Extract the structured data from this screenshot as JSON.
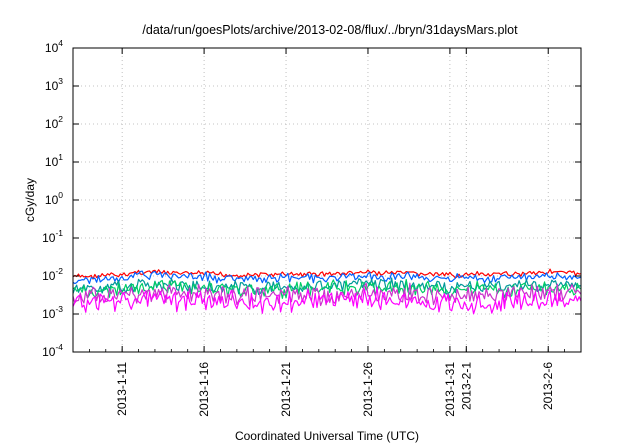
{
  "chart_data": {
    "type": "line",
    "title": "/data/run/goesPlots/archive/2013-02-08/flux/../bryn/31daysMars.plot",
    "xlabel": "Coordinated Universal Time (UTC)",
    "ylabel": "cGy/day",
    "y_scale": "log",
    "ylim": [
      0.0001,
      10000
    ],
    "xlim": [
      "2013-01-08",
      "2013-02-08"
    ],
    "y_ticks": [
      {
        "value": 0.0001,
        "base": "10",
        "exp": "-4"
      },
      {
        "value": 0.001,
        "base": "10",
        "exp": "-3"
      },
      {
        "value": 0.01,
        "base": "10",
        "exp": "-2"
      },
      {
        "value": 0.1,
        "base": "10",
        "exp": "-1"
      },
      {
        "value": 1,
        "base": "10",
        "exp": "0"
      },
      {
        "value": 10,
        "base": "10",
        "exp": "1"
      },
      {
        "value": 100,
        "base": "10",
        "exp": "2"
      },
      {
        "value": 1000,
        "base": "10",
        "exp": "3"
      },
      {
        "value": 10000,
        "base": "10",
        "exp": "4"
      }
    ],
    "x_ticks": [
      {
        "date": "2013-01-11",
        "label": "2013-1-11"
      },
      {
        "date": "2013-01-16",
        "label": "2013-1-16"
      },
      {
        "date": "2013-01-21",
        "label": "2013-1-21"
      },
      {
        "date": "2013-01-26",
        "label": "2013-1-26"
      },
      {
        "date": "2013-01-31",
        "label": "2013-1-31"
      },
      {
        "date": "2013-02-01",
        "label": "2013-2-1"
      },
      {
        "date": "2013-02-06",
        "label": "2013-2-6"
      }
    ],
    "grid": true,
    "legend": "none",
    "series": [
      {
        "color": "#ff0000",
        "x": [
          "2013-01-08",
          "2013-01-11",
          "2013-01-12",
          "2013-01-14",
          "2013-01-16",
          "2013-01-18",
          "2013-01-21",
          "2013-01-24",
          "2013-01-26",
          "2013-01-28",
          "2013-01-31",
          "2013-02-03",
          "2013-02-06",
          "2013-02-08"
        ],
        "values": [
          0.0095,
          0.0105,
          0.013,
          0.012,
          0.0115,
          0.0105,
          0.011,
          0.0115,
          0.0125,
          0.012,
          0.0105,
          0.011,
          0.013,
          0.0115
        ]
      },
      {
        "color": "#0060ff",
        "x": [
          "2013-01-08",
          "2013-01-11",
          "2013-01-12",
          "2013-01-14",
          "2013-01-16",
          "2013-01-18",
          "2013-01-21",
          "2013-01-24",
          "2013-01-26",
          "2013-01-28",
          "2013-01-31",
          "2013-02-03",
          "2013-02-06",
          "2013-02-08"
        ],
        "values": [
          0.0075,
          0.0085,
          0.0105,
          0.0098,
          0.0092,
          0.0085,
          0.009,
          0.0092,
          0.01,
          0.0096,
          0.0084,
          0.0088,
          0.0104,
          0.0092
        ]
      },
      {
        "color": "#009999",
        "x": [
          "2013-01-08",
          "2013-01-11",
          "2013-01-12",
          "2013-01-14",
          "2013-01-16",
          "2013-01-18",
          "2013-01-21",
          "2013-01-24",
          "2013-01-26",
          "2013-01-28",
          "2013-01-31",
          "2013-02-03",
          "2013-02-06",
          "2013-02-08"
        ],
        "values": [
          0.0045,
          0.0052,
          0.0062,
          0.0058,
          0.0055,
          0.005,
          0.0053,
          0.0055,
          0.006,
          0.0057,
          0.005,
          0.0052,
          0.0062,
          0.0055
        ]
      },
      {
        "color": "#00cc66",
        "x": [
          "2013-01-08",
          "2013-01-11",
          "2013-01-12",
          "2013-01-14",
          "2013-01-16",
          "2013-01-18",
          "2013-01-21",
          "2013-01-24",
          "2013-01-26",
          "2013-01-28",
          "2013-01-31",
          "2013-02-03",
          "2013-02-06",
          "2013-02-08"
        ],
        "values": [
          0.0038,
          0.0043,
          0.0052,
          0.0048,
          0.0046,
          0.0042,
          0.0044,
          0.0046,
          0.005,
          0.0047,
          0.0042,
          0.0044,
          0.0052,
          0.0046
        ]
      },
      {
        "color": "#cc33cc",
        "x": [
          "2013-01-08",
          "2013-01-11",
          "2013-01-12",
          "2013-01-14",
          "2013-01-16",
          "2013-01-18",
          "2013-01-21",
          "2013-01-24",
          "2013-01-26",
          "2013-01-28",
          "2013-01-31",
          "2013-02-03",
          "2013-02-06",
          "2013-02-08"
        ],
        "values": [
          0.0028,
          0.0032,
          0.0038,
          0.0035,
          0.0033,
          0.003,
          0.0032,
          0.0033,
          0.0036,
          0.0034,
          0.003,
          0.0032,
          0.0038,
          0.0033
        ]
      },
      {
        "color": "#ff00ff",
        "x": [
          "2013-01-08",
          "2013-01-11",
          "2013-01-12",
          "2013-01-14",
          "2013-01-16",
          "2013-01-18",
          "2013-01-21",
          "2013-01-24",
          "2013-01-26",
          "2013-01-28",
          "2013-01-31",
          "2013-02-03",
          "2013-02-06",
          "2013-02-08"
        ],
        "values": [
          0.0018,
          0.0021,
          0.0026,
          0.0023,
          0.0022,
          0.002,
          0.0021,
          0.0022,
          0.0024,
          0.0023,
          0.002,
          0.0021,
          0.0026,
          0.0022
        ]
      }
    ]
  }
}
